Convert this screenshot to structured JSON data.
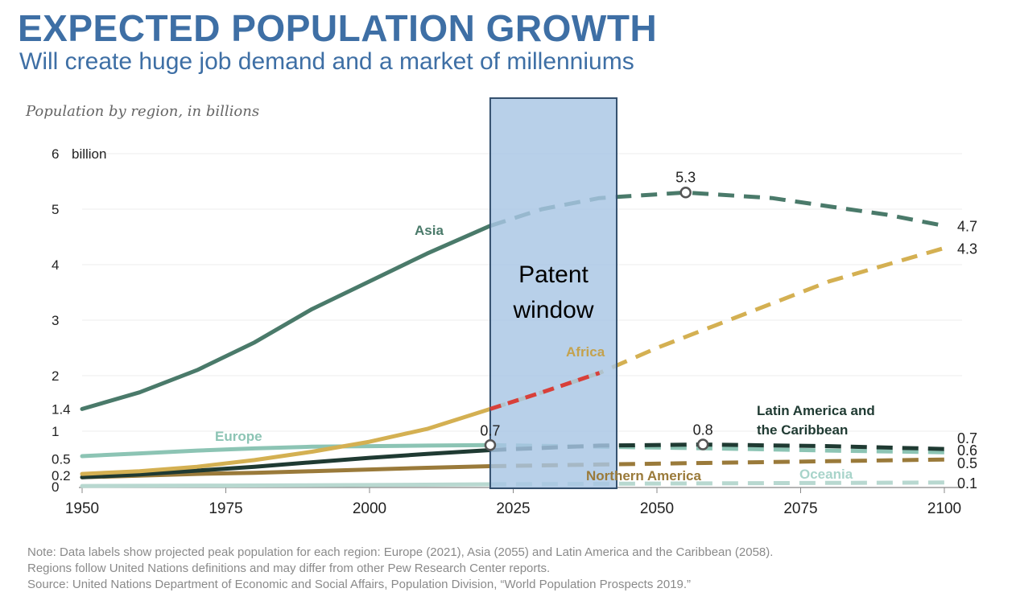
{
  "header": {
    "title": "EXPECTED POPULATION GROWTH",
    "subtitle": "Will create huge job demand and a market of millenniums"
  },
  "chart_data": {
    "type": "line",
    "subtitle": "Population by region, in billions",
    "xlim": [
      1950,
      2100
    ],
    "ylim": [
      0,
      6
    ],
    "x_ticks": [
      1950,
      1975,
      2000,
      2025,
      2050,
      2075,
      2100
    ],
    "y_ticks": [
      {
        "value": 6,
        "label": "6"
      },
      {
        "value": 5,
        "label": "5"
      },
      {
        "value": 4,
        "label": "4"
      },
      {
        "value": 3,
        "label": "3"
      },
      {
        "value": 2,
        "label": "2"
      },
      {
        "value": 1.4,
        "label": "1.4"
      },
      {
        "value": 1,
        "label": "1"
      },
      {
        "value": 0.5,
        "label": "0.5"
      },
      {
        "value": 0.2,
        "label": "0.2"
      },
      {
        "value": 0,
        "label": "0"
      }
    ],
    "y_unit_label": "billion",
    "projection_start": 2021,
    "grid": true,
    "series": [
      {
        "name": "Asia",
        "color": "#4a7a6a",
        "x": [
          1950,
          1960,
          1970,
          1980,
          1990,
          2000,
          2010,
          2021,
          2030,
          2040,
          2055,
          2070,
          2080,
          2090,
          2100
        ],
        "y": [
          1.4,
          1.7,
          2.1,
          2.6,
          3.2,
          3.7,
          4.2,
          4.7,
          5.0,
          5.2,
          5.3,
          5.2,
          5.05,
          4.9,
          4.7
        ],
        "label_value": "5.3",
        "end_value": "4.7"
      },
      {
        "name": "Africa",
        "color": "#d4b052",
        "x": [
          1950,
          1960,
          1970,
          1980,
          1990,
          2000,
          2010,
          2021,
          2030,
          2040,
          2050,
          2060,
          2070,
          2080,
          2090,
          2100
        ],
        "y": [
          0.23,
          0.28,
          0.36,
          0.48,
          0.63,
          0.81,
          1.04,
          1.4,
          1.7,
          2.05,
          2.5,
          2.9,
          3.3,
          3.7,
          4.0,
          4.3
        ],
        "end_value": "4.3"
      },
      {
        "name": "Europe",
        "color": "#8cc4b4",
        "x": [
          1950,
          1960,
          1970,
          1980,
          1990,
          2000,
          2010,
          2021,
          2040,
          2060,
          2080,
          2100
        ],
        "y": [
          0.55,
          0.6,
          0.65,
          0.69,
          0.72,
          0.73,
          0.74,
          0.75,
          0.72,
          0.69,
          0.65,
          0.62
        ],
        "label_value": "0.7",
        "end_value": "0.6"
      },
      {
        "name": "Latin America and the Caribbean",
        "color": "#1f3a32",
        "x": [
          1950,
          1960,
          1970,
          1980,
          1990,
          2000,
          2010,
          2021,
          2040,
          2058,
          2080,
          2100
        ],
        "y": [
          0.17,
          0.22,
          0.29,
          0.36,
          0.44,
          0.52,
          0.59,
          0.66,
          0.74,
          0.76,
          0.73,
          0.68
        ],
        "label_value": "0.8",
        "end_value": "0.7"
      },
      {
        "name": "Northern America",
        "color": "#9a7a3a",
        "x": [
          1950,
          1960,
          1970,
          1980,
          1990,
          2000,
          2010,
          2021,
          2040,
          2060,
          2080,
          2100
        ],
        "y": [
          0.17,
          0.2,
          0.23,
          0.25,
          0.28,
          0.31,
          0.34,
          0.37,
          0.4,
          0.43,
          0.46,
          0.49
        ],
        "end_value": "0.5"
      },
      {
        "name": "Oceania",
        "color": "#b8d8d0",
        "x": [
          1950,
          1975,
          2000,
          2021,
          2050,
          2075,
          2100
        ],
        "y": [
          0.013,
          0.021,
          0.031,
          0.043,
          0.057,
          0.066,
          0.075
        ],
        "end_value": "0.1"
      }
    ],
    "annotations": [
      {
        "text": "Patent window",
        "x_range": [
          2021,
          2043
        ],
        "color": "#a8c6e4"
      }
    ]
  },
  "notes": [
    "Note: Data labels show projected peak population for each region: Europe (2021), Asia (2055) and Latin America and the Caribbean (2058).",
    "Regions follow United Nations definitions and may differ from other Pew Research Center reports.",
    "Source: United Nations Department of Economic and Social Affairs, Population Division, “World Population Prospects 2019.”"
  ]
}
